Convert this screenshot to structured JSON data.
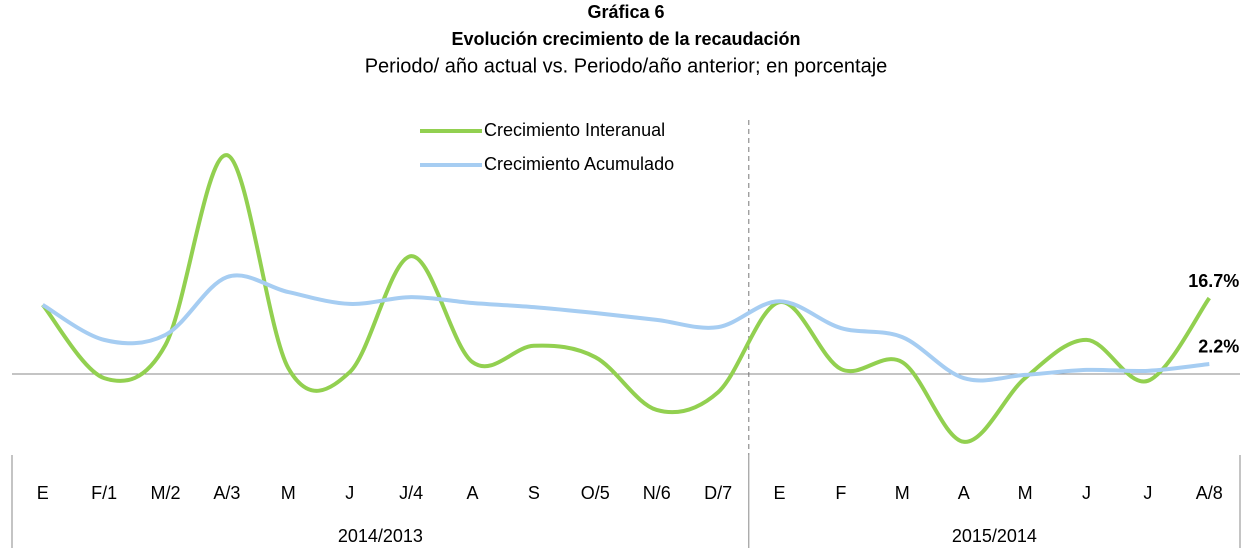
{
  "chart_data": {
    "type": "line",
    "title": "Gráfica 6",
    "subtitle": "Evolución crecimiento de la recaudación",
    "description": "Periodo/ año actual vs. Periodo/año anterior; en porcentaje",
    "categories": [
      "E",
      "F/1",
      "M/2",
      "A/3",
      "M",
      "J",
      "J/4",
      "A",
      "S",
      "O/5",
      "N/6",
      "D/7",
      "E",
      "F",
      "M",
      "A",
      "M",
      "J",
      "J",
      "A/8"
    ],
    "groups": [
      {
        "label": "2014/2013",
        "span": 12
      },
      {
        "label": "2015/2014",
        "span": 8
      }
    ],
    "series": [
      {
        "name": "Crecimiento Interanual",
        "color": "#92d050",
        "values": [
          15.2,
          -0.9,
          6.4,
          48.1,
          1.3,
          0.4,
          25.9,
          2.6,
          6.2,
          3.7,
          -7.9,
          -4.0,
          15.8,
          1.1,
          2.6,
          -14.9,
          -0.9,
          7.5,
          -1.5,
          16.7
        ],
        "value_labels": [
          null,
          null,
          null,
          null,
          null,
          null,
          null,
          null,
          null,
          null,
          null,
          null,
          null,
          null,
          null,
          null,
          null,
          null,
          null,
          "16.7%"
        ]
      },
      {
        "name": "Crecimiento Acumulado",
        "color": "#a6cdf2",
        "values": [
          15.2,
          7.5,
          8.6,
          21.3,
          18.0,
          15.4,
          16.9,
          15.6,
          14.7,
          13.4,
          11.9,
          10.3,
          16.0,
          10.1,
          8.1,
          -0.9,
          -0.2,
          0.9,
          0.7,
          2.2
        ],
        "value_labels": [
          null,
          null,
          null,
          null,
          null,
          null,
          null,
          null,
          null,
          null,
          null,
          null,
          null,
          null,
          null,
          null,
          null,
          null,
          null,
          "2.2%"
        ]
      }
    ],
    "ylim": [
      -20,
      52
    ],
    "legend": "top"
  }
}
